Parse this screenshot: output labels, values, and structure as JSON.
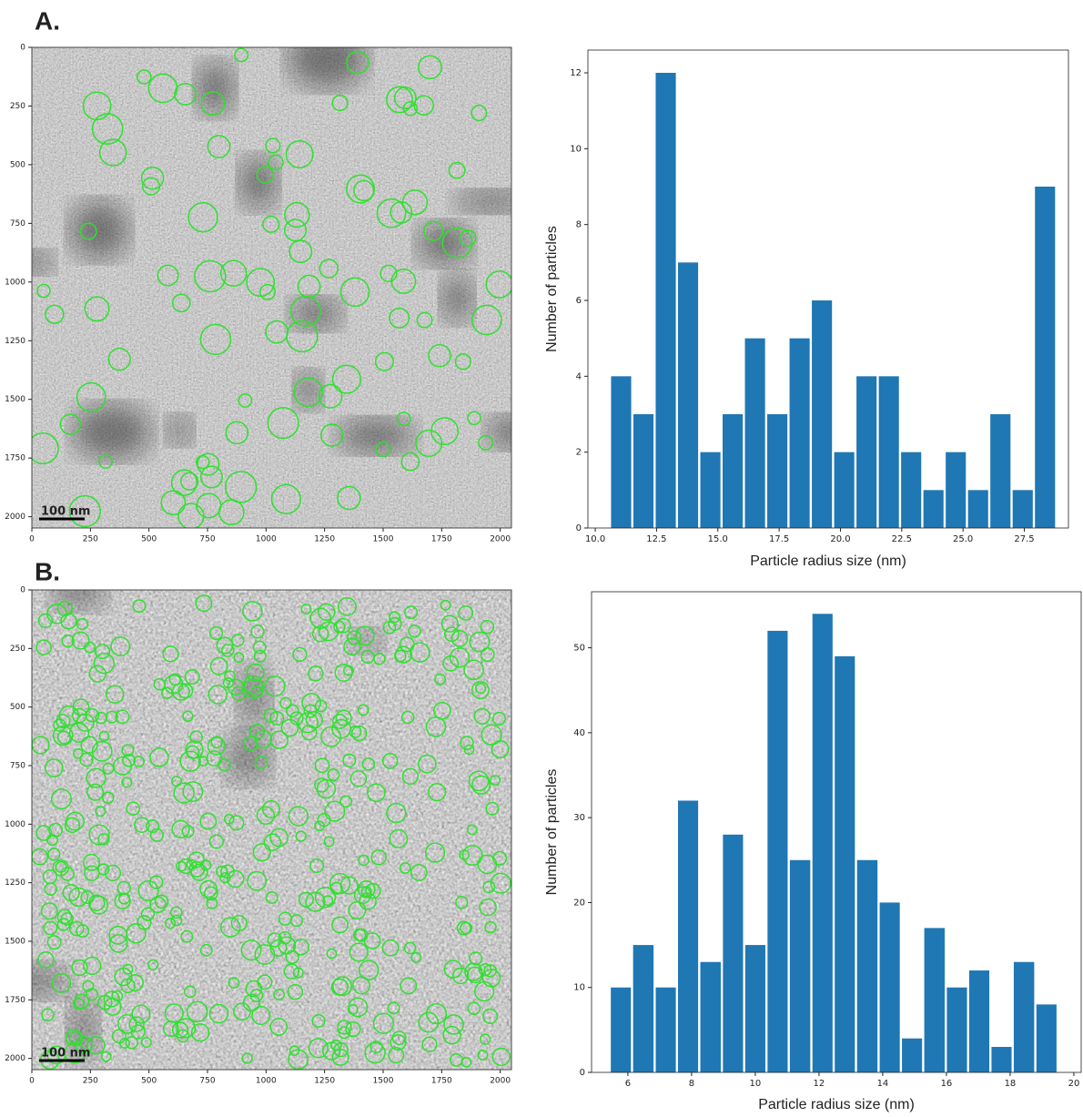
{
  "panel_labels": [
    "A.",
    "B."
  ],
  "chart_data": [
    {
      "type": "image",
      "scale_bar": "100 nm",
      "xlim": [
        0,
        2048
      ],
      "ylim": [
        2048,
        0
      ],
      "xticks": [
        0,
        250,
        500,
        750,
        1000,
        1250,
        1500,
        1750,
        2000
      ],
      "yticks": [
        0,
        250,
        500,
        750,
        1000,
        1250,
        1500,
        1750,
        2000
      ]
    },
    {
      "type": "histogram",
      "xlabel": "Particle radius size (nm)",
      "ylabel": "Number of particles",
      "color": "#1f77b4",
      "bins": [
        10.6,
        11.51,
        12.42,
        13.33,
        14.24,
        15.15,
        16.06,
        16.97,
        17.88,
        18.79,
        19.7,
        20.61,
        21.52,
        22.43,
        23.34,
        24.25,
        25.16,
        26.07,
        26.98,
        27.89,
        28.8
      ],
      "values": [
        4,
        3,
        12,
        7,
        2,
        3,
        5,
        3,
        5,
        6,
        2,
        4,
        4,
        2,
        1,
        2,
        1,
        3,
        1,
        9
      ],
      "xlim": [
        9.7,
        29.3
      ],
      "ylim": [
        0,
        12.6
      ],
      "xticks": [
        {
          "value": 10,
          "label": "10.0"
        },
        {
          "value": 12.5,
          "label": "12.5"
        },
        {
          "value": 15,
          "label": "15.0"
        },
        {
          "value": 17.5,
          "label": "17.5"
        },
        {
          "value": 20,
          "label": "20.0"
        },
        {
          "value": 22.5,
          "label": "22.5"
        },
        {
          "value": 25,
          "label": "25.0"
        },
        {
          "value": 27.5,
          "label": "27.5"
        }
      ],
      "yticks": [
        0,
        2,
        4,
        6,
        8,
        10,
        12
      ]
    },
    {
      "type": "image",
      "scale_bar": "100 nm",
      "xlim": [
        0,
        2048
      ],
      "ylim": [
        2048,
        0
      ],
      "xticks": [
        0,
        250,
        500,
        750,
        1000,
        1250,
        1500,
        1750,
        2000
      ],
      "yticks": [
        0,
        250,
        500,
        750,
        1000,
        1250,
        1500,
        1750,
        2000
      ]
    },
    {
      "type": "histogram",
      "xlabel": "Particle radius size (nm)",
      "ylabel": "Number of particles",
      "color": "#1f77b4",
      "bins": [
        5.43,
        6.13,
        6.84,
        7.54,
        8.24,
        8.95,
        9.65,
        10.35,
        11.05,
        11.76,
        12.46,
        13.16,
        13.87,
        14.57,
        15.27,
        15.98,
        16.68,
        17.38,
        18.08,
        18.79,
        19.49
      ],
      "values": [
        10,
        15,
        10,
        32,
        13,
        28,
        15,
        52,
        25,
        54,
        49,
        25,
        20,
        4,
        17,
        10,
        12,
        3,
        13,
        8
      ],
      "xlim": [
        4.86,
        20.23
      ],
      "ylim": [
        0,
        56.6
      ],
      "xticks": [
        6,
        8,
        10,
        12,
        14,
        16,
        18,
        20
      ],
      "yticks": [
        0,
        10,
        20,
        30,
        40,
        50
      ]
    }
  ]
}
